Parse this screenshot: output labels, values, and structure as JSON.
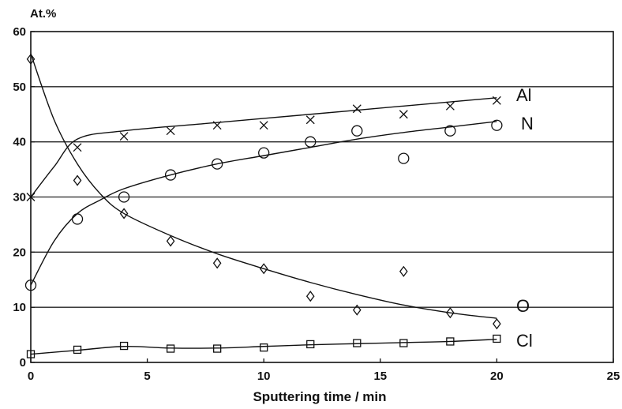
{
  "chart_data": {
    "type": "scatter",
    "ylabel": "At.%",
    "xlabel": "Sputtering time / min",
    "xlim": [
      0,
      25
    ],
    "ylim": [
      0,
      60
    ],
    "x_ticks": [
      0,
      5,
      10,
      15,
      20,
      25
    ],
    "y_ticks": [
      0,
      10,
      20,
      30,
      40,
      50,
      60
    ],
    "grid": "horizontal",
    "series": [
      {
        "name": "Al",
        "marker": "x",
        "points": [
          [
            0,
            30
          ],
          [
            2,
            39
          ],
          [
            4,
            41
          ],
          [
            6,
            42
          ],
          [
            8,
            43
          ],
          [
            10,
            43
          ],
          [
            12,
            44
          ],
          [
            14,
            46
          ],
          [
            16,
            45
          ],
          [
            18,
            46.5
          ],
          [
            20,
            47.5
          ]
        ],
        "fit": [
          [
            0,
            30
          ],
          [
            1,
            35.5
          ],
          [
            2,
            40.5
          ],
          [
            4,
            42
          ],
          [
            8,
            43.5
          ],
          [
            12,
            45
          ],
          [
            16,
            46.5
          ],
          [
            20,
            48
          ]
        ]
      },
      {
        "name": "N",
        "marker": "circle",
        "points": [
          [
            0,
            14
          ],
          [
            2,
            26
          ],
          [
            4,
            30
          ],
          [
            6,
            34
          ],
          [
            8,
            36
          ],
          [
            10,
            38
          ],
          [
            12,
            40
          ],
          [
            14,
            42
          ],
          [
            16,
            37
          ],
          [
            18,
            42
          ],
          [
            20,
            43
          ]
        ],
        "fit": [
          [
            0,
            14
          ],
          [
            1,
            22
          ],
          [
            2,
            27
          ],
          [
            3,
            29.5
          ],
          [
            4,
            31.5
          ],
          [
            6,
            34
          ],
          [
            8,
            36
          ],
          [
            10,
            37.5
          ],
          [
            12,
            39
          ],
          [
            14,
            40.5
          ],
          [
            16,
            41.7
          ],
          [
            18,
            42.7
          ],
          [
            20,
            43.7
          ]
        ]
      },
      {
        "name": "O",
        "marker": "diamond",
        "points": [
          [
            0,
            55
          ],
          [
            2,
            33
          ],
          [
            4,
            27
          ],
          [
            6,
            22
          ],
          [
            8,
            18
          ],
          [
            10,
            17
          ],
          [
            12,
            12
          ],
          [
            14,
            9.5
          ],
          [
            16,
            16.5
          ],
          [
            18,
            9
          ],
          [
            20,
            7
          ]
        ],
        "fit": [
          [
            0,
            56
          ],
          [
            1,
            44
          ],
          [
            2,
            36
          ],
          [
            3,
            30.5
          ],
          [
            4,
            27
          ],
          [
            6,
            23
          ],
          [
            8,
            19.7
          ],
          [
            10,
            17
          ],
          [
            12,
            14.5
          ],
          [
            14,
            12.3
          ],
          [
            16,
            10.4
          ],
          [
            18,
            9
          ],
          [
            20,
            8
          ]
        ]
      },
      {
        "name": "Cl",
        "marker": "square",
        "points": [
          [
            0,
            1.5
          ],
          [
            2,
            2.3
          ],
          [
            4,
            3
          ],
          [
            6,
            2.5
          ],
          [
            8,
            2.5
          ],
          [
            10,
            2.7
          ],
          [
            12,
            3.3
          ],
          [
            14,
            3.5
          ],
          [
            16,
            3.5
          ],
          [
            18,
            3.8
          ],
          [
            20,
            4.3
          ]
        ],
        "fit": [
          [
            0,
            1.5
          ],
          [
            2,
            2.2
          ],
          [
            4,
            2.9
          ],
          [
            6,
            2.6
          ],
          [
            8,
            2.6
          ],
          [
            10,
            2.9
          ],
          [
            12,
            3.2
          ],
          [
            14,
            3.4
          ],
          [
            16,
            3.6
          ],
          [
            18,
            3.8
          ],
          [
            20,
            4.2
          ]
        ]
      }
    ],
    "series_labels": [
      {
        "text": "Al",
        "series": "Al"
      },
      {
        "text": "N",
        "series": "N"
      },
      {
        "text": "O",
        "series": "O"
      },
      {
        "text": "Cl",
        "series": "Cl"
      }
    ]
  }
}
